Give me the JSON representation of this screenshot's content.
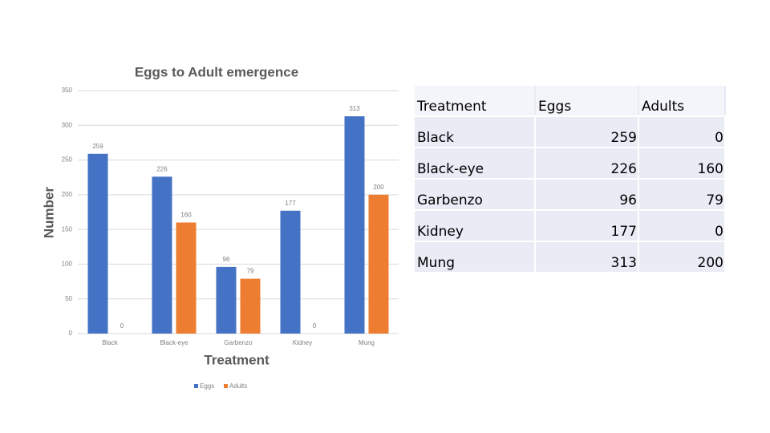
{
  "chart_data": {
    "type": "bar",
    "title": "Eggs to Adult emergence",
    "x_label": "Treatment",
    "y_label": "Number",
    "categories": [
      "Black",
      "Black-eye",
      "Garbenzo",
      "Kidney",
      "Mung"
    ],
    "series": [
      {
        "name": "Eggs",
        "color": "#4472c4",
        "values": [
          259,
          226,
          96,
          177,
          313
        ]
      },
      {
        "name": "Adults",
        "color": "#ed7d31",
        "values": [
          0,
          160,
          79,
          0,
          200
        ]
      }
    ],
    "ylim": [
      0,
      350
    ],
    "yticks": [
      0,
      50,
      100,
      150,
      200,
      250,
      300,
      350
    ],
    "grid": true,
    "legend": "bottom"
  },
  "table": {
    "header": [
      "Treatment",
      "Eggs",
      "Adults"
    ],
    "rows": [
      [
        "Black",
        259,
        0
      ],
      [
        "Black-eye",
        226,
        160
      ],
      [
        "Garbenzo",
        96,
        79
      ],
      [
        "Kidney",
        177,
        0
      ],
      [
        "Mung",
        313,
        200
      ]
    ]
  }
}
